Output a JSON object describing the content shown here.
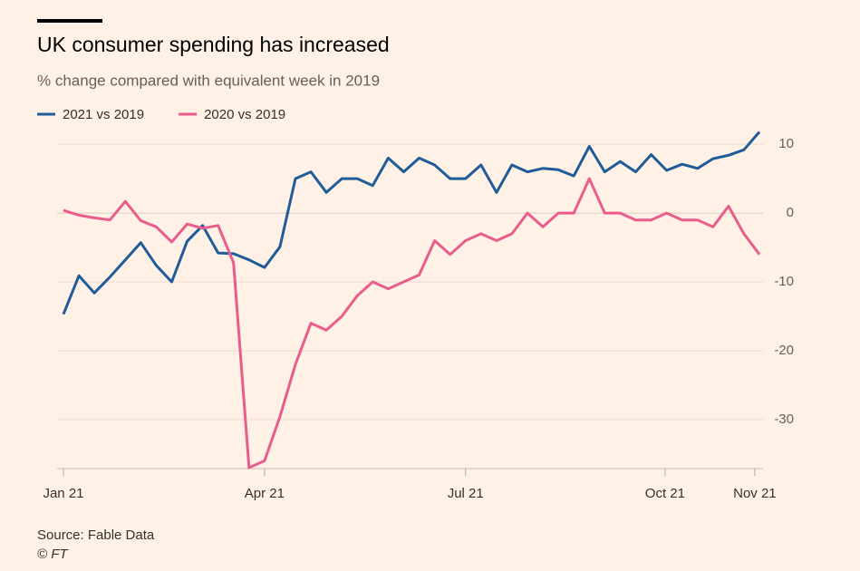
{
  "chart_data": {
    "type": "line",
    "title": "UK consumer spending has increased",
    "subtitle": "% change compared with equivalent week in 2019",
    "source": "Source: Fable Data",
    "credit": "© FT",
    "x": [
      0,
      1,
      2,
      3,
      4,
      5,
      6,
      7,
      8,
      9,
      10,
      11,
      12,
      13,
      14,
      15,
      16,
      17,
      18,
      19,
      20,
      21,
      22,
      23,
      24,
      25,
      26,
      27,
      28,
      29,
      30,
      31,
      32,
      33,
      34,
      35,
      36,
      37,
      38,
      39,
      40,
      41,
      42,
      43,
      44,
      45
    ],
    "series": [
      {
        "name": "2021 vs 2019",
        "color": "#1f5c99",
        "values": [
          -14.7,
          -9.1,
          -11.6,
          -9.3,
          -6.8,
          -4.3,
          -7.6,
          -10,
          -4.1,
          -1.8,
          -5.8,
          -5.9,
          -6.8,
          -7.9,
          -4.9,
          5,
          6,
          3,
          5,
          5,
          4,
          8,
          6,
          8,
          7,
          5,
          5,
          7,
          3,
          7,
          6,
          6.5,
          6.3,
          5.4,
          9.7,
          6,
          7.5,
          6,
          8.5,
          6.2,
          7.1,
          6.5,
          7.9,
          8.4,
          9.2,
          11.8
        ]
      },
      {
        "name": "2020 vs 2019",
        "color": "#e95d8c",
        "values": [
          0.4,
          -0.3,
          -0.7,
          -1,
          1.7,
          -1.1,
          -2,
          -4.2,
          -1.6,
          -2.2,
          -1.8,
          -7.2,
          -37,
          -36,
          -29.6,
          -22,
          -16,
          -17,
          -15,
          -12,
          -10,
          -11,
          -10,
          -9,
          -4,
          -6,
          -4,
          -3,
          -4,
          -3,
          0,
          -2,
          0,
          0,
          5,
          0,
          0,
          -1,
          -1,
          0,
          -1,
          -1,
          -2,
          1,
          -3,
          -6
        ]
      }
    ],
    "xlim": [
      0,
      45
    ],
    "xticks": [
      {
        "value": 0,
        "label": "Jan 21"
      },
      {
        "value": 13,
        "label": "Apr 21"
      },
      {
        "value": 26,
        "label": "Jul 21"
      },
      {
        "value": 38.9,
        "label": "Oct 21"
      },
      {
        "value": 44.7,
        "label": "Nov 21"
      }
    ],
    "ylim": [
      -37,
      12
    ],
    "yticks": [
      10,
      0,
      -10,
      -20,
      -30
    ],
    "grid": true,
    "legend": "top-left"
  }
}
